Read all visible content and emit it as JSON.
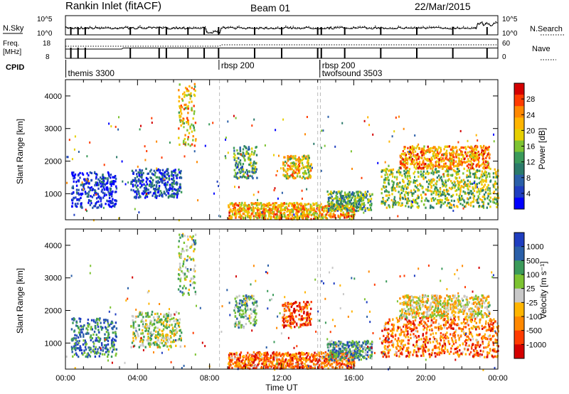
{
  "header": {
    "title": "Rankin Inlet (fitACF)",
    "beam": "Beam 01",
    "date": "22/Mar/2015"
  },
  "housekeeping": {
    "nsky_label": "N.Sky",
    "nsearch_label": "N.Search",
    "nsky_ticks": [
      "10^5",
      "10^0"
    ],
    "nsearch_ticks": [
      "10^5",
      "10^0"
    ],
    "freq_label": "Freq.",
    "freq_unit": "[MHz]",
    "freq_ticks": [
      "18",
      "8"
    ],
    "nave_label": "Nave",
    "nave_ticks": [
      "60",
      "0"
    ],
    "cpid_label": "CPID",
    "cpid_entries": [
      {
        "hour": 0.1,
        "text": "themis 3300",
        "row": 1
      },
      {
        "hour": 8.6,
        "text": "rbsp 200",
        "row": 0
      },
      {
        "hour": 14.2,
        "text": "rbsp 200",
        "row": 0
      },
      {
        "hour": 14.2,
        "text": "twofsound 3503",
        "row": 1
      }
    ],
    "channel_switch_hours": [
      0.3,
      0.7,
      1.1,
      3.6,
      5.2,
      5.6,
      6.8,
      7.7,
      8.5,
      10.5,
      12.0,
      14.0,
      14.2,
      15.5,
      17.5,
      19.5,
      21.5,
      23.4
    ]
  },
  "chart_data": [
    {
      "type": "heatmap",
      "panel": "power",
      "xlabel": "",
      "ylabel": "Slant Range [km]",
      "x_range_hours": [
        0,
        24
      ],
      "ylim": [
        200,
        4500
      ],
      "yticks": [
        "1000",
        "2000",
        "3000",
        "4000"
      ],
      "colorbar_label": "Power [dB]",
      "colorbar_ticks": [
        "28",
        "24",
        "20",
        "16",
        "12",
        "8",
        "4"
      ],
      "colorbar_colors": [
        "#d40000",
        "#ff3b00",
        "#ff8800",
        "#ffb500",
        "#e6cf00",
        "#7dc332",
        "#3b9a5a",
        "#2b7a6a",
        "#2a5fa8",
        "#1f3ec0",
        "#0000ff"
      ],
      "echo_regions": [
        {
          "t": [
            0.3,
            2.8
          ],
          "r": [
            600,
            1700
          ],
          "level": 0.9
        },
        {
          "t": [
            3.6,
            6.4
          ],
          "r": [
            900,
            1800
          ],
          "level": 0.8
        },
        {
          "t": [
            6.2,
            7.2
          ],
          "r": [
            2500,
            4400
          ],
          "level": 0.35
        },
        {
          "t": [
            9.3,
            10.6
          ],
          "r": [
            1500,
            2500
          ],
          "level": 0.6
        },
        {
          "t": [
            12.0,
            13.6
          ],
          "r": [
            1500,
            2200
          ],
          "level": 0.35
        },
        {
          "t": [
            9.0,
            16.0
          ],
          "r": [
            250,
            750
          ],
          "level": 0.3
        },
        {
          "t": [
            14.5,
            17.0
          ],
          "r": [
            500,
            1100
          ],
          "level": 0.6
        },
        {
          "t": [
            17.5,
            24.0
          ],
          "r": [
            600,
            1800
          ],
          "level": 0.5
        },
        {
          "t": [
            18.5,
            23.5
          ],
          "r": [
            1800,
            2500
          ],
          "level": 0.25
        }
      ]
    },
    {
      "type": "heatmap",
      "panel": "velocity",
      "xlabel": "Time UT",
      "ylabel": "Slant Range [km]",
      "x_range_hours": [
        0,
        24
      ],
      "ylim": [
        200,
        4500
      ],
      "yticks": [
        "1000",
        "2000",
        "3000",
        "4000"
      ],
      "xticks": [
        "00:00",
        "04:00",
        "08:00",
        "12:00",
        "16:00",
        "20:00",
        "00:00"
      ],
      "colorbar_label": "Velocity [m s⁻¹]",
      "colorbar_ticks": [
        "1000",
        "500",
        "100",
        "25",
        "-25",
        "-100",
        "-500",
        "-1000"
      ],
      "colorbar_colors": [
        "#1f3ec0",
        "#2a5fa8",
        "#3b9a5a",
        "#7dc332",
        "#c8c8c8",
        "#ffb500",
        "#ff8800",
        "#ff3b00",
        "#d40000"
      ],
      "echo_regions": [
        {
          "t": [
            0.3,
            2.8
          ],
          "r": [
            600,
            1800
          ],
          "level": 0.2
        },
        {
          "t": [
            3.6,
            6.4
          ],
          "r": [
            900,
            2000
          ],
          "level": 0.45
        },
        {
          "t": [
            6.2,
            7.2
          ],
          "r": [
            2500,
            4400
          ],
          "level": 0.4
        },
        {
          "t": [
            9.3,
            10.6
          ],
          "r": [
            1500,
            2500
          ],
          "level": 0.35
        },
        {
          "t": [
            12.0,
            13.6
          ],
          "r": [
            1500,
            2300
          ],
          "level": 0.85
        },
        {
          "t": [
            9.0,
            16.0
          ],
          "r": [
            250,
            750
          ],
          "level": 0.75
        },
        {
          "t": [
            14.5,
            17.0
          ],
          "r": [
            500,
            1100
          ],
          "level": 0.3
        },
        {
          "t": [
            17.5,
            24.0
          ],
          "r": [
            600,
            1800
          ],
          "level": 0.75
        },
        {
          "t": [
            18.5,
            23.5
          ],
          "r": [
            1800,
            2500
          ],
          "level": 0.55
        }
      ]
    }
  ]
}
